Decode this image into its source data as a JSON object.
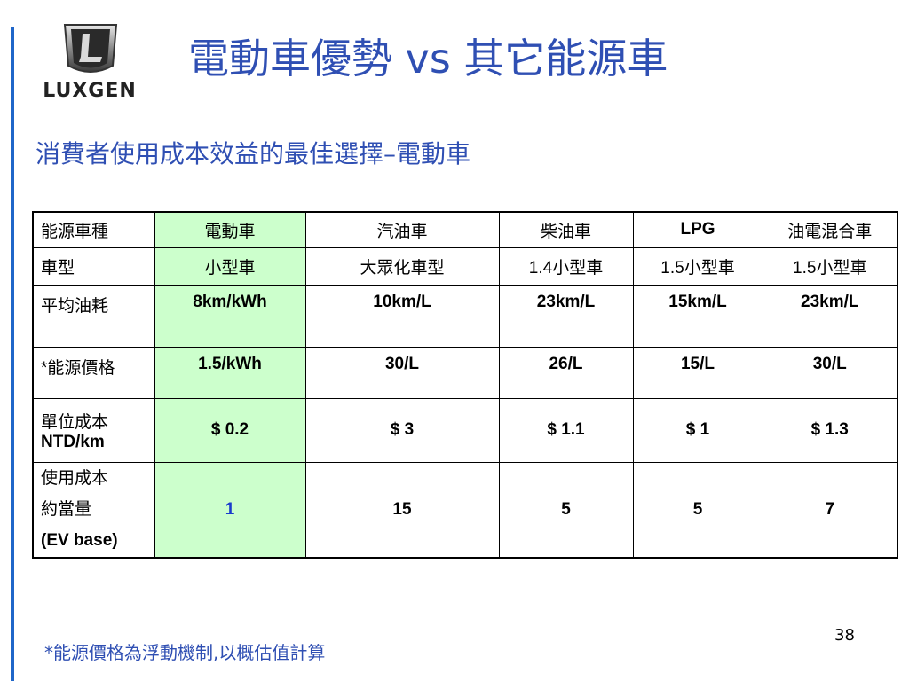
{
  "slide": {
    "brand": "LUXGEN",
    "title": "電動車優勢 vs 其它能源車",
    "subtitle": "消費者使用成本效益的最佳選擇–電動車",
    "footnote": "*能源價格為浮動機制,以概估值計算",
    "page_number": "38",
    "accent_color": "#2f4fb3",
    "highlight_color": "#ccffcc"
  },
  "table": {
    "headers": [
      "能源車種",
      "電動車",
      "汽油車",
      "柴油車",
      "LPG",
      "油電混合車"
    ],
    "rows": [
      {
        "label": "車型",
        "cells": [
          "小型車",
          "大眾化車型",
          "1.4小型車",
          "1.5小型車",
          "1.5小型車"
        ]
      },
      {
        "label": "平均油耗",
        "cells": [
          "8km/kWh",
          "10km/L",
          "23km/L",
          "15km/L",
          "23km/L"
        ]
      },
      {
        "label": "*能源價格",
        "cells": [
          "1.5/kWh",
          "30/L",
          "26/L",
          "15/L",
          "30/L"
        ]
      },
      {
        "label_line1": "單位成本",
        "label_line2": "NTD/km",
        "cells": [
          "$ 0.2",
          "$ 3",
          "$ 1.1",
          "$ 1",
          "$ 1.3"
        ]
      },
      {
        "label_line1": "使用成本",
        "label_line2": "約當量",
        "label_line3": "(EV base)",
        "cells": [
          "1",
          "15",
          "5",
          "5",
          "7"
        ]
      }
    ]
  }
}
